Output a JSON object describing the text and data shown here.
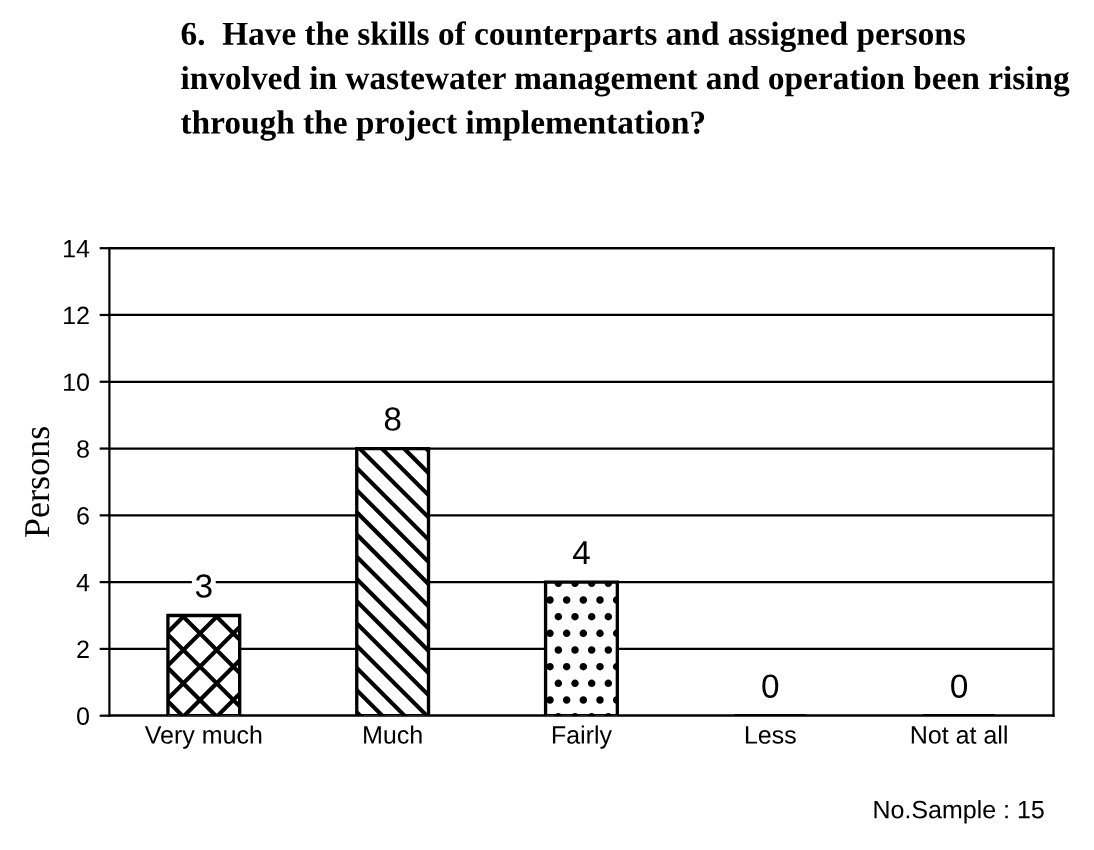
{
  "chart_data": {
    "type": "bar",
    "title": "6.  Have the skills of counterparts and assigned persons involved in wastewater management and operation been rising through the project implementation?",
    "ylabel": "Persons",
    "categories": [
      "Very much",
      "Much",
      "Fairly",
      "Less",
      "Not at all"
    ],
    "values": [
      3,
      8,
      4,
      0,
      0
    ],
    "color": "#000000",
    "ylim": [
      0,
      14
    ],
    "yticks": [
      0,
      2,
      4,
      6,
      8,
      10,
      12,
      14
    ],
    "grid": "y",
    "data_labels": true,
    "annotations": [
      "No.Sample : 15"
    ]
  }
}
